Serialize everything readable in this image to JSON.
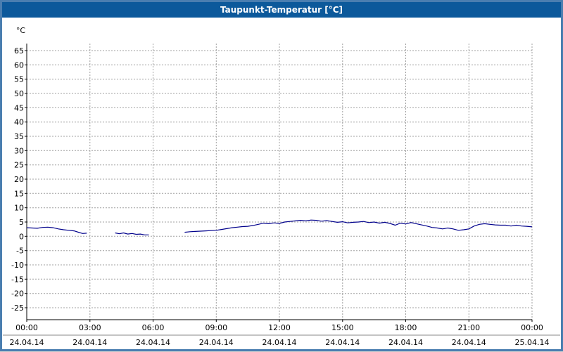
{
  "window": {
    "title": "Taupunkt-Temperatur [°C]"
  },
  "colors": {
    "frame": "#4a7eb0",
    "titlebar": "#0c599b",
    "title_text": "#ffffff",
    "plot_bg": "#ffffff",
    "grid": "#a0a0a0",
    "axis": "#000000",
    "separator": "#888888",
    "series": "#00008b"
  },
  "chart_data": {
    "type": "line",
    "title": "Taupunkt-Temperatur [°C]",
    "xlabel": "",
    "ylabel": "°C",
    "grid": true,
    "legend": "none",
    "ylim": [
      -27.5,
      67.5
    ],
    "yticks": [
      65,
      60,
      55,
      50,
      45,
      40,
      35,
      30,
      25,
      20,
      15,
      10,
      5,
      0,
      -5,
      -10,
      -15,
      -20,
      -25
    ],
    "x_range": [
      0,
      24
    ],
    "xticks": [
      {
        "hour": 0,
        "time": "00:00",
        "date": "24.04.14"
      },
      {
        "hour": 3,
        "time": "03:00",
        "date": "24.04.14"
      },
      {
        "hour": 6,
        "time": "06:00",
        "date": "24.04.14"
      },
      {
        "hour": 9,
        "time": "09:00",
        "date": "24.04.14"
      },
      {
        "hour": 12,
        "time": "12:00",
        "date": "24.04.14"
      },
      {
        "hour": 15,
        "time": "15:00",
        "date": "24.04.14"
      },
      {
        "hour": 18,
        "time": "18:00",
        "date": "24.04.14"
      },
      {
        "hour": 21,
        "time": "21:00",
        "date": "24.04.14"
      },
      {
        "hour": 24,
        "time": "00:00",
        "date": "25.04.14"
      }
    ],
    "series": [
      {
        "name": "Taupunkt-Temperatur",
        "color": "#00008b",
        "unit": "°C",
        "segments": [
          [
            [
              0,
              3.0
            ],
            [
              0.25,
              2.9
            ],
            [
              0.5,
              2.8
            ],
            [
              0.75,
              3.1
            ],
            [
              1.0,
              3.2
            ],
            [
              1.25,
              3.0
            ],
            [
              1.5,
              2.6
            ],
            [
              1.75,
              2.3
            ],
            [
              2.0,
              2.1
            ],
            [
              2.25,
              1.9
            ],
            [
              2.5,
              1.3
            ],
            [
              2.65,
              1.0
            ],
            [
              2.85,
              1.1
            ]
          ],
          [
            [
              4.2,
              1.2
            ],
            [
              4.4,
              0.9
            ],
            [
              4.6,
              1.2
            ],
            [
              4.8,
              0.8
            ],
            [
              5.0,
              1.0
            ],
            [
              5.2,
              0.7
            ],
            [
              5.4,
              0.8
            ],
            [
              5.6,
              0.5
            ],
            [
              5.8,
              0.5
            ]
          ],
          [
            [
              7.5,
              1.4
            ],
            [
              7.75,
              1.6
            ],
            [
              8.0,
              1.7
            ],
            [
              8.25,
              1.8
            ],
            [
              8.5,
              1.9
            ],
            [
              8.75,
              2.0
            ],
            [
              9.0,
              2.1
            ],
            [
              9.25,
              2.4
            ],
            [
              9.5,
              2.7
            ],
            [
              9.75,
              3.0
            ],
            [
              10.0,
              3.2
            ],
            [
              10.25,
              3.4
            ],
            [
              10.5,
              3.5
            ],
            [
              10.75,
              3.8
            ],
            [
              11.0,
              4.2
            ],
            [
              11.25,
              4.6
            ],
            [
              11.5,
              4.4
            ],
            [
              11.75,
              4.7
            ],
            [
              12.0,
              4.5
            ],
            [
              12.25,
              5.0
            ],
            [
              12.5,
              5.2
            ],
            [
              12.75,
              5.4
            ],
            [
              13.0,
              5.6
            ],
            [
              13.25,
              5.4
            ],
            [
              13.5,
              5.7
            ],
            [
              13.75,
              5.6
            ],
            [
              14.0,
              5.3
            ],
            [
              14.25,
              5.5
            ],
            [
              14.5,
              5.2
            ],
            [
              14.75,
              4.9
            ],
            [
              15.0,
              5.1
            ],
            [
              15.25,
              4.7
            ],
            [
              15.5,
              4.9
            ],
            [
              15.75,
              5.0
            ],
            [
              16.0,
              5.2
            ],
            [
              16.25,
              4.8
            ],
            [
              16.5,
              5.0
            ],
            [
              16.75,
              4.6
            ],
            [
              17.0,
              4.9
            ],
            [
              17.25,
              4.5
            ],
            [
              17.5,
              3.9
            ],
            [
              17.75,
              4.6
            ],
            [
              18.0,
              4.3
            ],
            [
              18.25,
              4.8
            ],
            [
              18.5,
              4.4
            ],
            [
              18.75,
              4.0
            ],
            [
              19.0,
              3.6
            ],
            [
              19.25,
              3.1
            ],
            [
              19.5,
              2.9
            ],
            [
              19.75,
              2.6
            ],
            [
              20.0,
              2.9
            ],
            [
              20.25,
              2.6
            ],
            [
              20.5,
              2.1
            ],
            [
              20.75,
              2.3
            ],
            [
              21.0,
              2.6
            ],
            [
              21.25,
              3.6
            ],
            [
              21.5,
              4.2
            ],
            [
              21.75,
              4.4
            ],
            [
              22.0,
              4.2
            ],
            [
              22.25,
              4.0
            ],
            [
              22.5,
              3.9
            ],
            [
              22.75,
              3.9
            ],
            [
              23.0,
              3.6
            ],
            [
              23.25,
              3.9
            ],
            [
              23.5,
              3.6
            ],
            [
              23.75,
              3.5
            ],
            [
              24.0,
              3.3
            ]
          ]
        ]
      }
    ]
  }
}
